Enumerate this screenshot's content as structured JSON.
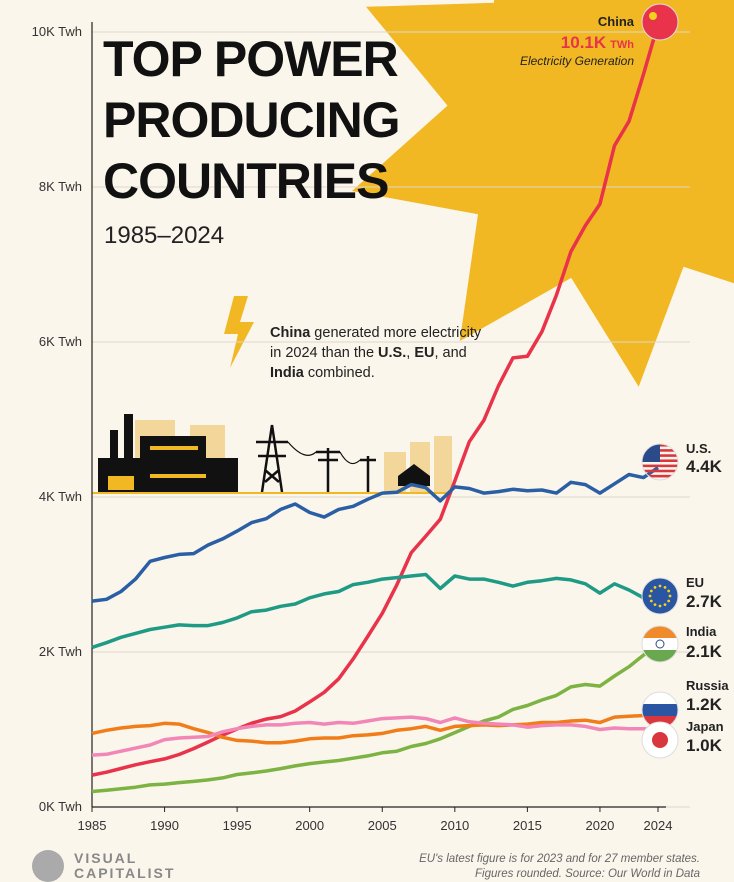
{
  "chart_data": {
    "type": "line",
    "title_lines": [
      "TOP POWER",
      "PRODUCING",
      "COUNTRIES"
    ],
    "subtitle": "1985–2024",
    "annotation_lines": [
      [
        {
          "text": "China",
          "bold": true
        },
        {
          "text": " generated more electricity",
          "bold": false
        }
      ],
      [
        {
          "text": "in 2024 than the ",
          "bold": false
        },
        {
          "text": "U.S.",
          "bold": true
        },
        {
          "text": ", ",
          "bold": false
        },
        {
          "text": "EU",
          "bold": true
        },
        {
          "text": ", and",
          "bold": false
        }
      ],
      [
        {
          "text": "India",
          "bold": true
        },
        {
          "text": " combined.",
          "bold": false
        }
      ]
    ],
    "china_unit": "TWh",
    "china_caption": "Electricity Generation",
    "x": [
      1985,
      1986,
      1987,
      1988,
      1989,
      1990,
      1991,
      1992,
      1993,
      1994,
      1995,
      1996,
      1997,
      1998,
      1999,
      2000,
      2001,
      2002,
      2003,
      2004,
      2005,
      2006,
      2007,
      2008,
      2009,
      2010,
      2011,
      2012,
      2013,
      2014,
      2015,
      2016,
      2017,
      2018,
      2019,
      2020,
      2021,
      2022,
      2023,
      2024
    ],
    "xlim": [
      1985,
      2024
    ],
    "xticks": [
      1985,
      1990,
      1995,
      2000,
      2005,
      2010,
      2015,
      2020,
      2024
    ],
    "ylim": [
      0,
      10000
    ],
    "yticks": [
      {
        "value": 0,
        "label": "0K Twh"
      },
      {
        "value": 2000,
        "label": "2K Twh"
      },
      {
        "value": 4000,
        "label": "4K Twh"
      },
      {
        "value": 6000,
        "label": "6K Twh"
      },
      {
        "value": 8000,
        "label": "8K Twh"
      },
      {
        "value": 10000,
        "label": "10K Twh"
      }
    ],
    "grid": true,
    "series": [
      {
        "name": "China",
        "color": "#e8334a",
        "values": [
          411,
          449,
          497,
          545,
          584,
          621,
          678,
          754,
          839,
          928,
          1007,
          1081,
          1134,
          1167,
          1239,
          1356,
          1480,
          1654,
          1911,
          2200,
          2500,
          2866,
          3282,
          3496,
          3714,
          4207,
          4713,
          4988,
          5432,
          5795,
          5815,
          6133,
          6604,
          7166,
          7503,
          7779,
          8534,
          8849,
          9456,
          10100
        ],
        "value_labels": [
          null,
          null,
          null,
          null,
          null,
          null,
          null,
          null,
          null,
          null,
          null,
          null,
          null,
          null,
          null,
          null,
          null,
          null,
          null,
          null,
          null,
          null,
          null,
          null,
          null,
          null,
          null,
          null,
          null,
          null,
          null,
          null,
          null,
          null,
          null,
          null,
          null,
          null,
          null,
          "10.1K"
        ]
      },
      {
        "name": "U.S.",
        "color": "#2b5fa5",
        "values": [
          2657,
          2680,
          2780,
          2940,
          3170,
          3220,
          3260,
          3270,
          3380,
          3460,
          3560,
          3670,
          3720,
          3840,
          3910,
          3800,
          3740,
          3840,
          3880,
          3970,
          4050,
          4060,
          4160,
          4120,
          3950,
          4130,
          4110,
          4050,
          4070,
          4100,
          4080,
          4090,
          4050,
          4190,
          4160,
          4050,
          4170,
          4290,
          4250,
          4380
        ],
        "value_labels": [
          null,
          null,
          null,
          null,
          null,
          null,
          null,
          null,
          null,
          null,
          null,
          null,
          null,
          null,
          null,
          null,
          null,
          null,
          null,
          null,
          null,
          null,
          null,
          null,
          null,
          null,
          null,
          null,
          null,
          null,
          null,
          null,
          null,
          null,
          null,
          null,
          null,
          null,
          null,
          "4.4K"
        ]
      },
      {
        "name": "EU",
        "color": "#1f9a85",
        "values": [
          2060,
          2120,
          2190,
          2240,
          2290,
          2320,
          2350,
          2340,
          2340,
          2380,
          2440,
          2520,
          2540,
          2590,
          2620,
          2700,
          2750,
          2780,
          2870,
          2900,
          2940,
          2960,
          2980,
          3000,
          2820,
          2980,
          2940,
          2940,
          2900,
          2850,
          2900,
          2920,
          2950,
          2930,
          2880,
          2760,
          2880,
          2800,
          2700,
          null
        ],
        "value_labels": [
          null,
          null,
          null,
          null,
          null,
          null,
          null,
          null,
          null,
          null,
          null,
          null,
          null,
          null,
          null,
          null,
          null,
          null,
          null,
          null,
          null,
          null,
          null,
          null,
          null,
          null,
          null,
          null,
          null,
          null,
          null,
          null,
          null,
          null,
          null,
          null,
          null,
          null,
          "2.7K",
          null
        ]
      },
      {
        "name": "India",
        "color": "#7cb342",
        "values": [
          200,
          215,
          235,
          255,
          285,
          295,
          315,
          330,
          350,
          375,
          420,
          440,
          465,
          495,
          530,
          560,
          580,
          600,
          630,
          660,
          700,
          720,
          780,
          820,
          880,
          960,
          1040,
          1110,
          1160,
          1260,
          1310,
          1380,
          1440,
          1550,
          1580,
          1560,
          1690,
          1810,
          1960,
          2060
        ],
        "value_labels": [
          null,
          null,
          null,
          null,
          null,
          null,
          null,
          null,
          null,
          null,
          null,
          null,
          null,
          null,
          null,
          null,
          null,
          null,
          null,
          null,
          null,
          null,
          null,
          null,
          null,
          null,
          null,
          null,
          null,
          null,
          null,
          null,
          null,
          null,
          null,
          null,
          null,
          null,
          null,
          "2.1K"
        ]
      },
      {
        "name": "Russia",
        "color": "#f07d1a",
        "values": [
          950,
          990,
          1020,
          1040,
          1050,
          1080,
          1070,
          1010,
          960,
          900,
          860,
          850,
          830,
          830,
          850,
          880,
          890,
          890,
          920,
          930,
          950,
          990,
          1010,
          1040,
          990,
          1040,
          1050,
          1060,
          1050,
          1060,
          1070,
          1090,
          1090,
          1110,
          1120,
          1090,
          1160,
          1170,
          1180,
          1190
        ],
        "value_labels": [
          null,
          null,
          null,
          null,
          null,
          null,
          null,
          null,
          null,
          null,
          null,
          null,
          null,
          null,
          null,
          null,
          null,
          null,
          null,
          null,
          null,
          null,
          null,
          null,
          null,
          null,
          null,
          null,
          null,
          null,
          null,
          null,
          null,
          null,
          null,
          null,
          null,
          null,
          null,
          "1.2K"
        ]
      },
      {
        "name": "Japan",
        "color": "#f287b7",
        "values": [
          670,
          680,
          720,
          760,
          800,
          870,
          890,
          900,
          910,
          970,
          1010,
          1040,
          1060,
          1060,
          1080,
          1090,
          1070,
          1090,
          1080,
          1110,
          1140,
          1150,
          1160,
          1140,
          1090,
          1150,
          1100,
          1080,
          1070,
          1060,
          1030,
          1050,
          1060,
          1060,
          1040,
          1000,
          1020,
          1010,
          1010,
          1000
        ],
        "value_labels": [
          null,
          null,
          null,
          null,
          null,
          null,
          null,
          null,
          null,
          null,
          null,
          null,
          null,
          null,
          null,
          null,
          null,
          null,
          null,
          null,
          null,
          null,
          null,
          null,
          null,
          null,
          null,
          null,
          null,
          null,
          null,
          null,
          null,
          null,
          null,
          null,
          null,
          null,
          null,
          "1.0K"
        ]
      }
    ],
    "footer_notes": [
      "EU's latest figure is for 2023 and for 27 member states.",
      "Figures rounded. Source: Our World in Data"
    ],
    "brand_lines": [
      "VISUAL",
      "CAPITALIST"
    ]
  }
}
